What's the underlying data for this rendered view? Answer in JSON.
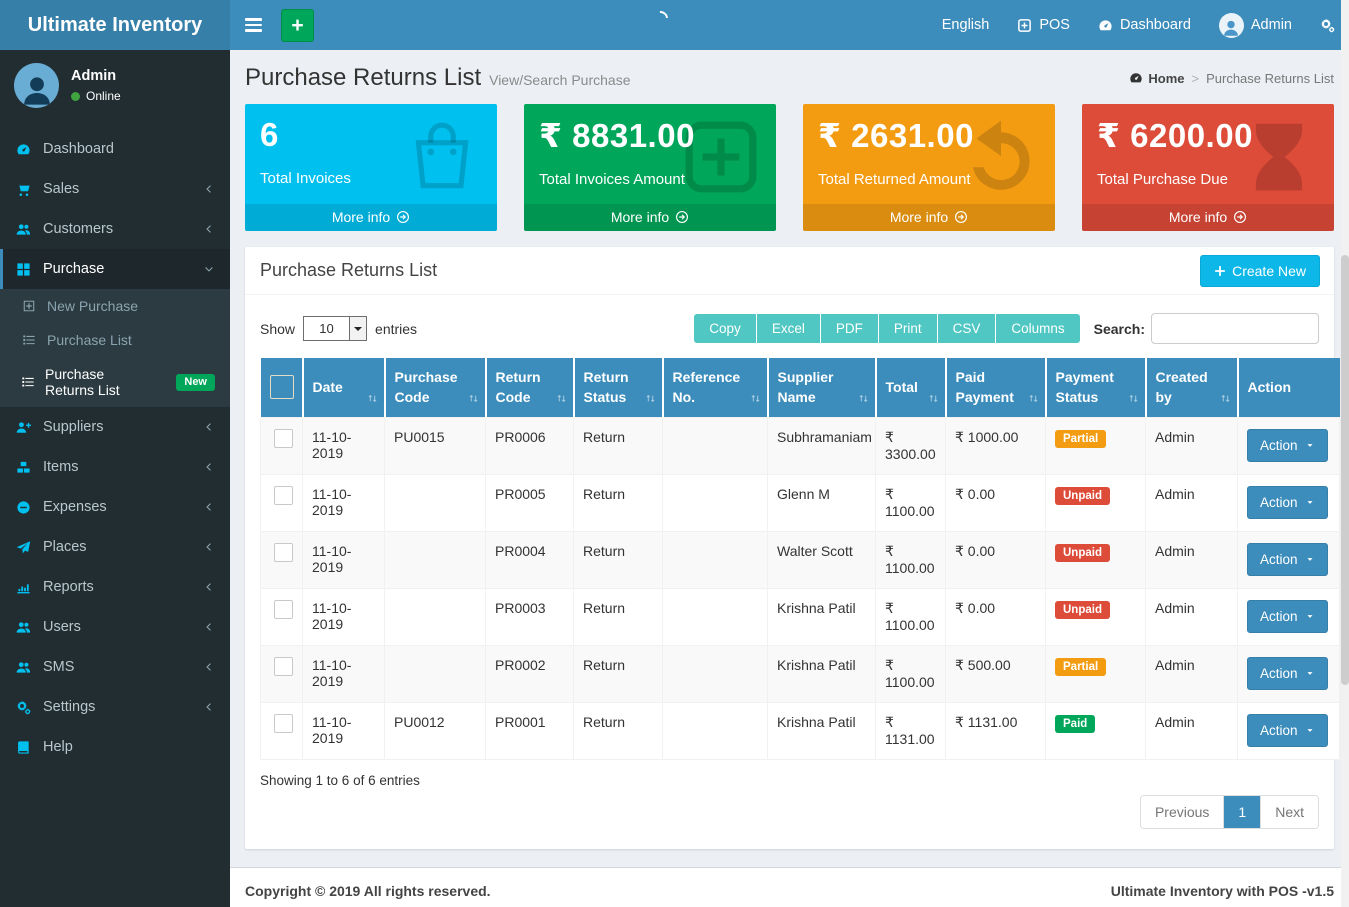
{
  "navbar": {
    "brand": "Ultimate Inventory",
    "add_button": "+",
    "right_items": [
      {
        "label": "English",
        "icon": null,
        "name": "nav-language"
      },
      {
        "label": "POS",
        "icon": "plus-square-icon",
        "name": "nav-pos"
      },
      {
        "label": "Dashboard",
        "icon": "tachometer-icon",
        "name": "nav-dashboard"
      },
      {
        "label": "Admin",
        "icon": "avatar",
        "name": "nav-user"
      },
      {
        "label": "",
        "icon": "cogs-icon",
        "name": "nav-settings"
      }
    ]
  },
  "sidebar": {
    "user": {
      "name": "Admin",
      "status": "Online"
    },
    "items": [
      {
        "label": "Dashboard",
        "icon": "tachometer-icon"
      },
      {
        "label": "Sales",
        "icon": "cart-icon",
        "chevron": "left"
      },
      {
        "label": "Customers",
        "icon": "users-icon",
        "chevron": "left"
      },
      {
        "label": "Purchase",
        "icon": "grid-icon",
        "chevron": "down",
        "active": true,
        "submenu": [
          {
            "label": "New Purchase",
            "icon": "plus-square-o-icon"
          },
          {
            "label": "Purchase List",
            "icon": "list-icon"
          },
          {
            "label": "Purchase Returns List",
            "icon": "list-icon",
            "active": true,
            "badge": "New"
          }
        ]
      },
      {
        "label": "Suppliers",
        "icon": "user-plus-icon",
        "chevron": "left"
      },
      {
        "label": "Items",
        "icon": "cubes-icon",
        "chevron": "left"
      },
      {
        "label": "Expenses",
        "icon": "minus-circle-icon",
        "chevron": "left"
      },
      {
        "label": "Places",
        "icon": "paper-plane-icon",
        "chevron": "left"
      },
      {
        "label": "Reports",
        "icon": "bar-chart-icon",
        "chevron": "left"
      },
      {
        "label": "Users",
        "icon": "users-icon",
        "chevron": "left"
      },
      {
        "label": "SMS",
        "icon": "users-icon",
        "chevron": "left"
      },
      {
        "label": "Settings",
        "icon": "cogs-icon",
        "chevron": "left"
      },
      {
        "label": "Help",
        "icon": "book-icon"
      }
    ]
  },
  "page_header": {
    "title": "Purchase Returns List",
    "subtitle": "View/Search Purchase",
    "breadcrumb": {
      "home": "Home",
      "separator": ">",
      "current": "Purchase Returns List"
    }
  },
  "stat_boxes": [
    {
      "value": "6",
      "label": "Total Invoices",
      "more": "More info",
      "color": "#00c0ef",
      "icon": "shopping-bag-icon"
    },
    {
      "value": "₹ 8831.00",
      "label": "Total Invoices Amount",
      "more": "More info",
      "color": "#00a65a",
      "icon": "plus-square-big-icon"
    },
    {
      "value": "₹ 2631.00",
      "label": "Total Returned Amount",
      "more": "More info",
      "color": "#f39c12",
      "icon": "rotate-left-icon"
    },
    {
      "value": "₹ 6200.00",
      "label": "Total Purchase Due",
      "more": "More info",
      "color": "#dd4b39",
      "icon": "hourglass-icon"
    }
  ],
  "panel": {
    "title": "Purchase Returns List",
    "create_button": "Create New",
    "show_label": "Show",
    "page_size": "10",
    "entries_label": "entries",
    "export_buttons": [
      "Copy",
      "Excel",
      "PDF",
      "Print",
      "CSV",
      "Columns"
    ],
    "search_label": "Search:",
    "search_value": "",
    "table": {
      "columns": [
        "",
        "Date",
        "Purchase Code",
        "Return Code",
        "Return Status",
        "Reference No.",
        "Supplier Name",
        "Total",
        "Paid Payment",
        "Payment Status",
        "Created by",
        "Action"
      ],
      "action_label": "Action",
      "rows": [
        {
          "date": "11-10-2019",
          "purchase_code": "PU0015",
          "return_code": "PR0006",
          "return_status": "Return",
          "reference_no": "",
          "supplier": "Subhramaniam",
          "total": "₹ 3300.00",
          "paid": "₹ 1000.00",
          "payment_status": "Partial",
          "created_by": "Admin"
        },
        {
          "date": "11-10-2019",
          "purchase_code": "",
          "return_code": "PR0005",
          "return_status": "Return",
          "reference_no": "",
          "supplier": "Glenn M",
          "total": "₹ 1100.00",
          "paid": "₹ 0.00",
          "payment_status": "Unpaid",
          "created_by": "Admin"
        },
        {
          "date": "11-10-2019",
          "purchase_code": "",
          "return_code": "PR0004",
          "return_status": "Return",
          "reference_no": "",
          "supplier": "Walter Scott",
          "total": "₹ 1100.00",
          "paid": "₹ 0.00",
          "payment_status": "Unpaid",
          "created_by": "Admin"
        },
        {
          "date": "11-10-2019",
          "purchase_code": "",
          "return_code": "PR0003",
          "return_status": "Return",
          "reference_no": "",
          "supplier": "Krishna Patil",
          "total": "₹ 1100.00",
          "paid": "₹ 0.00",
          "payment_status": "Unpaid",
          "created_by": "Admin"
        },
        {
          "date": "11-10-2019",
          "purchase_code": "",
          "return_code": "PR0002",
          "return_status": "Return",
          "reference_no": "",
          "supplier": "Krishna Patil",
          "total": "₹ 1100.00",
          "paid": "₹ 500.00",
          "payment_status": "Partial",
          "created_by": "Admin"
        },
        {
          "date": "11-10-2019",
          "purchase_code": "PU0012",
          "return_code": "PR0001",
          "return_status": "Return",
          "reference_no": "",
          "supplier": "Krishna Patil",
          "total": "₹ 1131.00",
          "paid": "₹ 1131.00",
          "payment_status": "Paid",
          "created_by": "Admin"
        }
      ]
    },
    "summary": "Showing 1 to 6 of 6 entries",
    "pagination": {
      "previous": "Previous",
      "page": "1",
      "next": "Next"
    }
  },
  "footer": {
    "left": "Copyright © 2019 All rights reserved.",
    "right": "Ultimate Inventory with POS -v1.5"
  },
  "colors": {
    "navbar": "#3c8dbc",
    "logo_bg": "#367fa9",
    "sidebar_bg": "#222d32",
    "submenu_bg": "#2c3b41",
    "aqua": "#00c0ef",
    "green": "#00a65a",
    "orange": "#f39c12",
    "red": "#dd4b39",
    "export_teal": "#50c7c2",
    "table_header": "#3c8dbc",
    "badge_paid": "#00a65a",
    "badge_partial": "#f39c12",
    "badge_unpaid": "#dd4b39"
  }
}
